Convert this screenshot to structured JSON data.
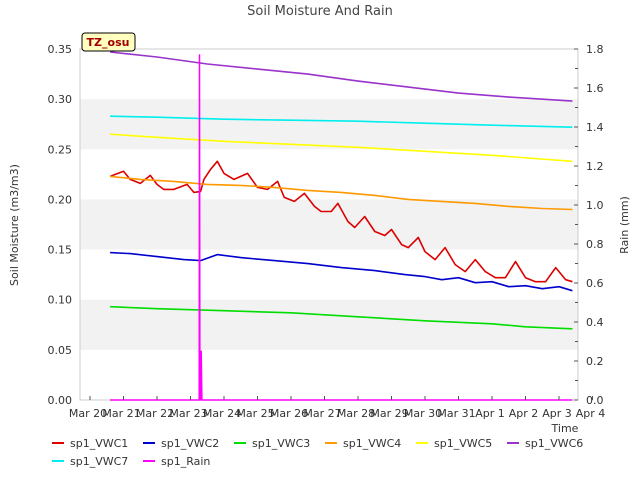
{
  "chart_data": {
    "type": "line",
    "title": "Soil Moisture And Rain",
    "badge": "TZ_osu",
    "xlabel": "Time",
    "ylabel": "Soil Moisture (m3/m3)",
    "ylabel_right": "Rain (mm)",
    "ylim": [
      0,
      0.35
    ],
    "ylim_right": [
      0,
      1.8
    ],
    "xlim": [
      0,
      15
    ],
    "x_ticks": [
      "Mar 20",
      "Mar 21",
      "Mar 22",
      "Mar 23",
      "Mar 24",
      "Mar 25",
      "Mar 26",
      "Mar 27",
      "Mar 28",
      "Mar 29",
      "Mar 30",
      "Mar 31",
      "Apr 1",
      "Apr 2",
      "Apr 3",
      "Apr 4"
    ],
    "y_ticks": [
      "0.00",
      "0.05",
      "0.10",
      "0.15",
      "0.20",
      "0.25",
      "0.30",
      "0.35"
    ],
    "y_ticks_right": [
      "0.0",
      "0.2",
      "0.4",
      "0.6",
      "0.8",
      "1.0",
      "1.2",
      "1.4",
      "1.6",
      "1.8"
    ],
    "grid": "alternating horizontal bands",
    "legend_position": "bottom",
    "series": [
      {
        "name": "sp1_VWC1",
        "color": "#dd0000",
        "axis": "left",
        "x": [
          0.6,
          1.0,
          1.2,
          1.5,
          1.8,
          2.0,
          2.2,
          2.5,
          2.9,
          3.1,
          3.3,
          3.4,
          3.6,
          3.8,
          4.0,
          4.3,
          4.7,
          5.0,
          5.3,
          5.6,
          5.8,
          6.1,
          6.4,
          6.7,
          6.9,
          7.2,
          7.4,
          7.7,
          7.9,
          8.2,
          8.5,
          8.8,
          9.0,
          9.3,
          9.5,
          9.8,
          10.0,
          10.3,
          10.6,
          10.9,
          11.2,
          11.5,
          11.8,
          12.1,
          12.4,
          12.7,
          13.0,
          13.3,
          13.6,
          13.9,
          14.2,
          14.4
        ],
        "values": [
          0.223,
          0.228,
          0.22,
          0.216,
          0.224,
          0.215,
          0.21,
          0.21,
          0.215,
          0.207,
          0.208,
          0.22,
          0.23,
          0.238,
          0.226,
          0.22,
          0.226,
          0.212,
          0.21,
          0.218,
          0.202,
          0.198,
          0.206,
          0.193,
          0.188,
          0.188,
          0.196,
          0.178,
          0.172,
          0.183,
          0.168,
          0.164,
          0.17,
          0.155,
          0.152,
          0.162,
          0.148,
          0.14,
          0.152,
          0.135,
          0.128,
          0.14,
          0.128,
          0.122,
          0.122,
          0.138,
          0.122,
          0.118,
          0.118,
          0.132,
          0.12,
          0.118
        ]
      },
      {
        "name": "sp1_VWC2",
        "color": "#0000cc",
        "axis": "left",
        "x": [
          0.6,
          1.2,
          2.0,
          2.8,
          3.3,
          3.8,
          4.5,
          5.5,
          6.5,
          7.5,
          8.5,
          9.4,
          10.0,
          10.5,
          11.0,
          11.5,
          12.0,
          12.5,
          13.0,
          13.5,
          14.0,
          14.4
        ],
        "values": [
          0.147,
          0.146,
          0.143,
          0.14,
          0.139,
          0.145,
          0.142,
          0.139,
          0.136,
          0.132,
          0.129,
          0.125,
          0.123,
          0.12,
          0.122,
          0.117,
          0.118,
          0.113,
          0.114,
          0.111,
          0.113,
          0.109
        ]
      },
      {
        "name": "sp1_VWC3",
        "color": "#00dd00",
        "axis": "left",
        "x": [
          0.6,
          2.0,
          4.0,
          6.0,
          8.0,
          10.0,
          12.0,
          13.0,
          14.4
        ],
        "values": [
          0.093,
          0.091,
          0.089,
          0.087,
          0.083,
          0.079,
          0.076,
          0.073,
          0.071
        ]
      },
      {
        "name": "sp1_VWC4",
        "color": "#ff9900",
        "axis": "left",
        "x": [
          0.6,
          1.5,
          2.5,
          3.5,
          4.5,
          5.5,
          6.5,
          7.5,
          8.5,
          9.5,
          10.5,
          11.5,
          12.5,
          13.5,
          14.4
        ],
        "values": [
          0.223,
          0.22,
          0.218,
          0.215,
          0.214,
          0.212,
          0.209,
          0.207,
          0.204,
          0.2,
          0.198,
          0.196,
          0.193,
          0.191,
          0.19
        ]
      },
      {
        "name": "sp1_VWC5",
        "color": "#ffff00",
        "axis": "left",
        "x": [
          0.6,
          2.0,
          4.0,
          6.0,
          8.0,
          10.0,
          12.0,
          14.4
        ],
        "values": [
          0.265,
          0.262,
          0.258,
          0.255,
          0.252,
          0.248,
          0.244,
          0.238
        ]
      },
      {
        "name": "sp1_VWC6",
        "color": "#9933cc",
        "axis": "left",
        "x": [
          0.6,
          2.0,
          3.5,
          5.0,
          6.5,
          8.0,
          9.5,
          11.0,
          12.5,
          14.4
        ],
        "values": [
          0.347,
          0.342,
          0.335,
          0.33,
          0.325,
          0.318,
          0.312,
          0.306,
          0.302,
          0.298
        ]
      },
      {
        "name": "sp1_VWC7",
        "color": "#00eeee",
        "axis": "left",
        "x": [
          0.6,
          2.0,
          4.0,
          6.0,
          8.0,
          10.0,
          12.0,
          14.4
        ],
        "values": [
          0.283,
          0.282,
          0.28,
          0.279,
          0.278,
          0.276,
          0.274,
          0.272
        ]
      },
      {
        "name": "sp1_Rain",
        "color": "#ff00ff",
        "axis": "right",
        "x": [
          0.6,
          3.26,
          3.27,
          3.28,
          3.29,
          3.31,
          3.32,
          3.34,
          3.36,
          14.4
        ],
        "values": [
          0,
          0,
          1.77,
          0.0,
          0.25,
          0.0,
          0.25,
          0.0,
          0,
          0
        ]
      }
    ]
  }
}
